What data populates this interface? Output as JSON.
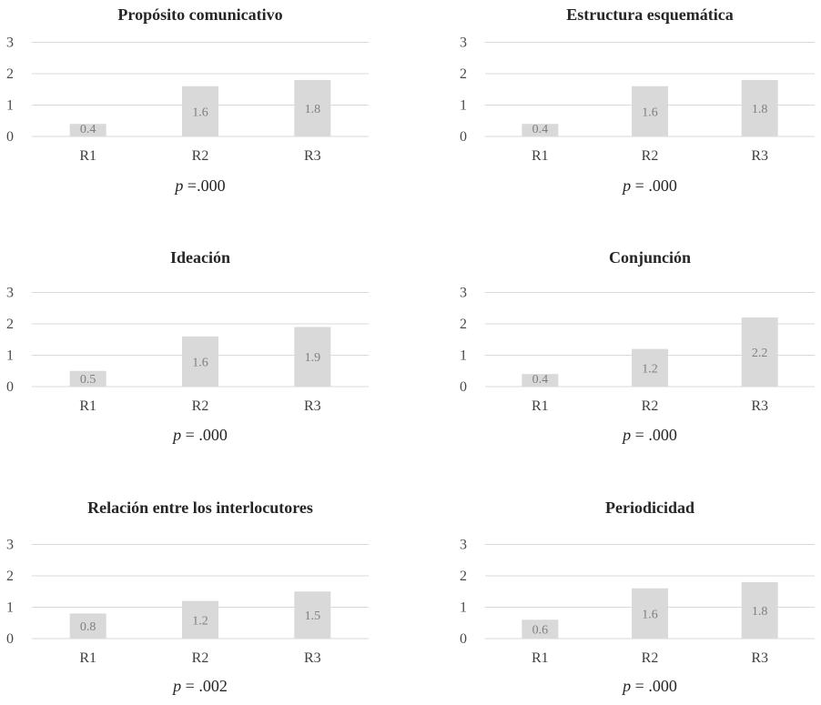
{
  "chart_data": [
    {
      "type": "bar",
      "title": "Propósito comunicativo",
      "categories": [
        "R1",
        "R2",
        "R3"
      ],
      "values": [
        0.4,
        1.6,
        1.8
      ],
      "ylim": [
        0,
        3
      ],
      "yticks": [
        0,
        1,
        2,
        3
      ],
      "grid": true,
      "p_prefix": "p",
      "p_value": "=.000"
    },
    {
      "type": "bar",
      "title": "Estructura esquemática",
      "categories": [
        "R1",
        "R2",
        "R3"
      ],
      "values": [
        0.4,
        1.6,
        1.8
      ],
      "ylim": [
        0,
        3
      ],
      "yticks": [
        0,
        1,
        2,
        3
      ],
      "grid": true,
      "p_prefix": "p",
      "p_value": "= .000"
    },
    {
      "type": "bar",
      "title": "Ideación",
      "categories": [
        "R1",
        "R2",
        "R3"
      ],
      "values": [
        0.5,
        1.6,
        1.9
      ],
      "ylim": [
        0,
        3
      ],
      "yticks": [
        0,
        1,
        2,
        3
      ],
      "grid": true,
      "p_prefix": "p",
      "p_value": "= .000"
    },
    {
      "type": "bar",
      "title": "Conjunción",
      "categories": [
        "R1",
        "R2",
        "R3"
      ],
      "values": [
        0.4,
        1.2,
        2.2
      ],
      "ylim": [
        0,
        3
      ],
      "yticks": [
        0,
        1,
        2,
        3
      ],
      "grid": true,
      "p_prefix": "p",
      "p_value": "= .000"
    },
    {
      "type": "bar",
      "title": "Relación entre los interlocutores",
      "categories": [
        "R1",
        "R2",
        "R3"
      ],
      "values": [
        0.8,
        1.2,
        1.5
      ],
      "ylim": [
        0,
        3
      ],
      "yticks": [
        0,
        1,
        2,
        3
      ],
      "grid": true,
      "p_prefix": "p",
      "p_value": "= .002"
    },
    {
      "type": "bar",
      "title": "Periodicidad",
      "categories": [
        "R1",
        "R2",
        "R3"
      ],
      "values": [
        0.6,
        1.6,
        1.8
      ],
      "ylim": [
        0,
        3
      ],
      "yticks": [
        0,
        1,
        2,
        3
      ],
      "grid": true,
      "p_prefix": "p",
      "p_value": "= .000"
    }
  ],
  "colors": {
    "bar": "#d9d9d9",
    "grid": "#d9d9d9",
    "data_label": "#7f7f7f",
    "text": "#262626"
  }
}
